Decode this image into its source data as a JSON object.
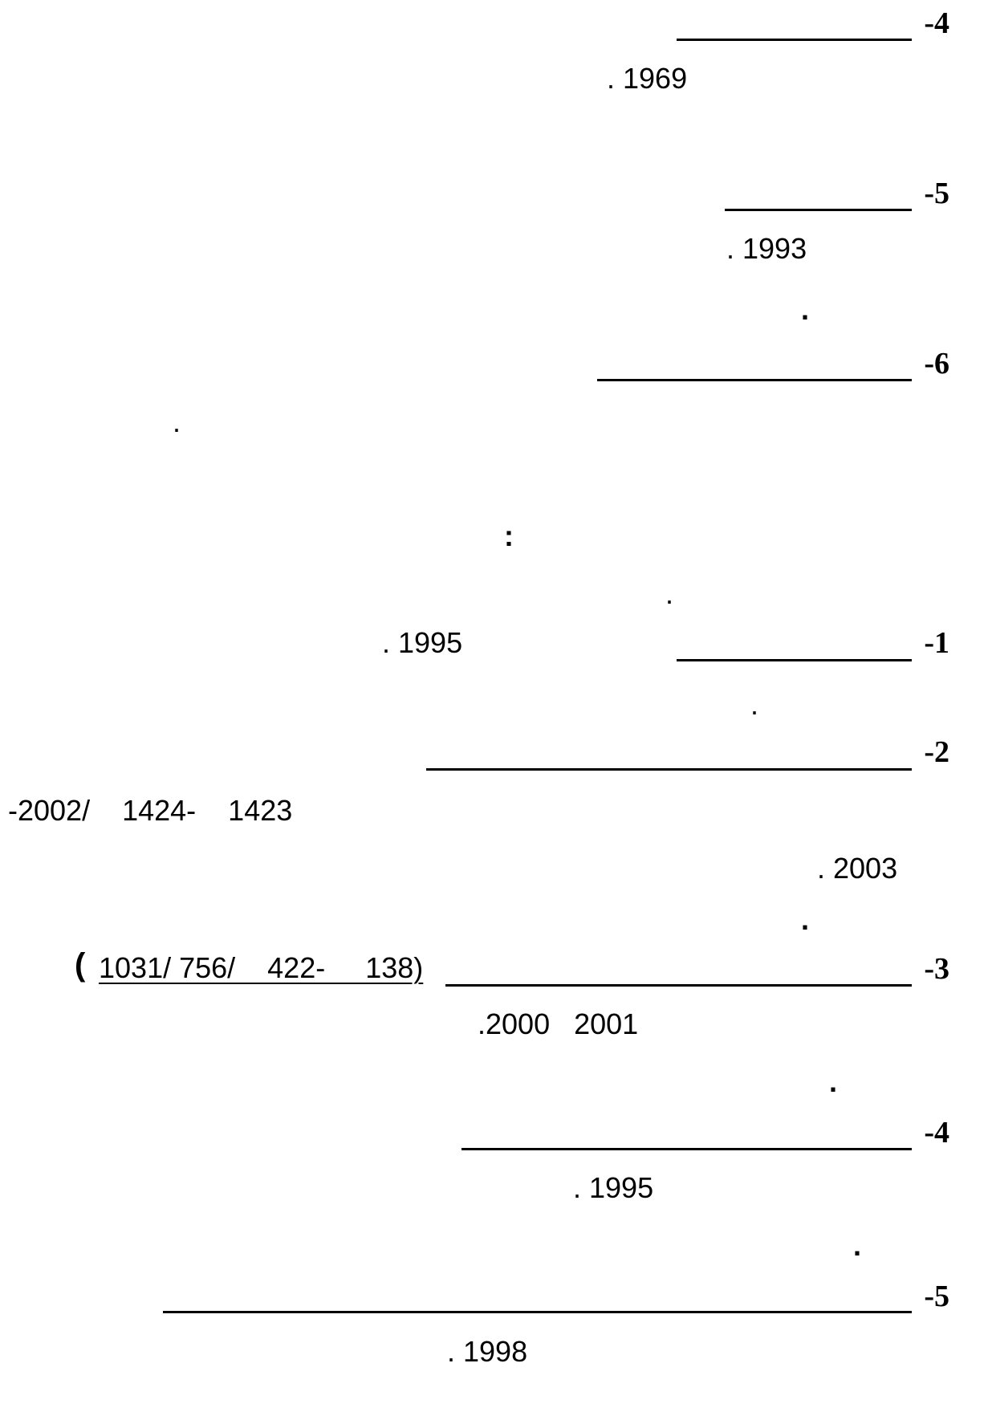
{
  "entries": [
    {
      "number": "-4",
      "year": ". 1969"
    },
    {
      "number": "-5",
      "year": ". 1993",
      "trailing": "."
    },
    {
      "number": "-6",
      "trailing": "."
    },
    {
      "colon": ":",
      "note_dot": "."
    },
    {
      "number": "-1",
      "year": ". 1995",
      "trailing": "."
    },
    {
      "number": "-2",
      "dates": "-2002/    1424-    1423",
      "year": ". 2003",
      "trailing": "."
    },
    {
      "number": "-3",
      "paren_open": "(",
      "ref": "1031/ 756/    422-     138)",
      "year": ".2000   2001",
      "trailing": "."
    },
    {
      "number": "-4",
      "year": ". 1995",
      "trailing": "."
    },
    {
      "number": "-5",
      "year": ". 1998"
    }
  ]
}
